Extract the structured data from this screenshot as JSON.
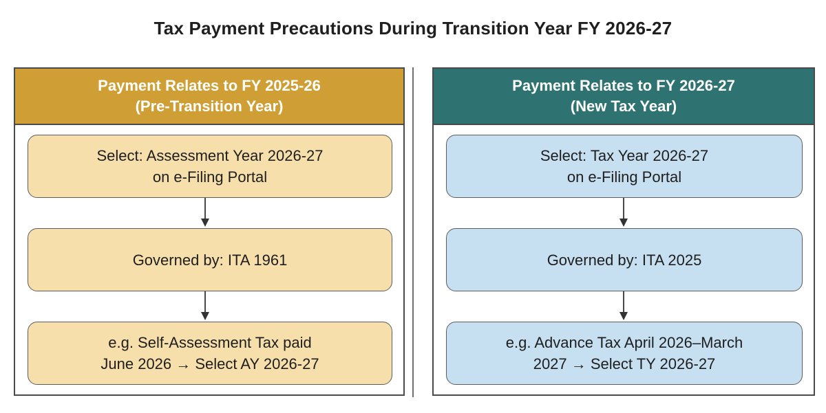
{
  "title": "Tax Payment Precautions During Transition Year FY 2026-27",
  "colors": {
    "left_header": "#cf9f35",
    "left_box": "#f7dfac",
    "right_header": "#2e7372",
    "right_box": "#c7e0f1"
  },
  "left": {
    "header_line1": "Payment Relates to FY 2025-26",
    "header_line2": "(Pre-Transition Year)",
    "steps": [
      {
        "line1": "Select: Assessment Year 2026-27",
        "line2": "on e-Filing Portal"
      },
      {
        "line1": "Governed by: ITA 1961",
        "line2": ""
      },
      {
        "line1": "e.g. Self-Assessment Tax paid",
        "line2": "June 2026 → Select AY 2026-27"
      }
    ]
  },
  "right": {
    "header_line1": "Payment Relates to FY 2026-27",
    "header_line2": "(New Tax Year)",
    "steps": [
      {
        "line1": "Select: Tax Year 2026-27",
        "line2": "on e-Filing Portal"
      },
      {
        "line1": "Governed by: ITA 2025",
        "line2": ""
      },
      {
        "line1": "e.g. Advance Tax April 2026–March",
        "line2": "2027 → Select TY 2026-27"
      }
    ]
  }
}
